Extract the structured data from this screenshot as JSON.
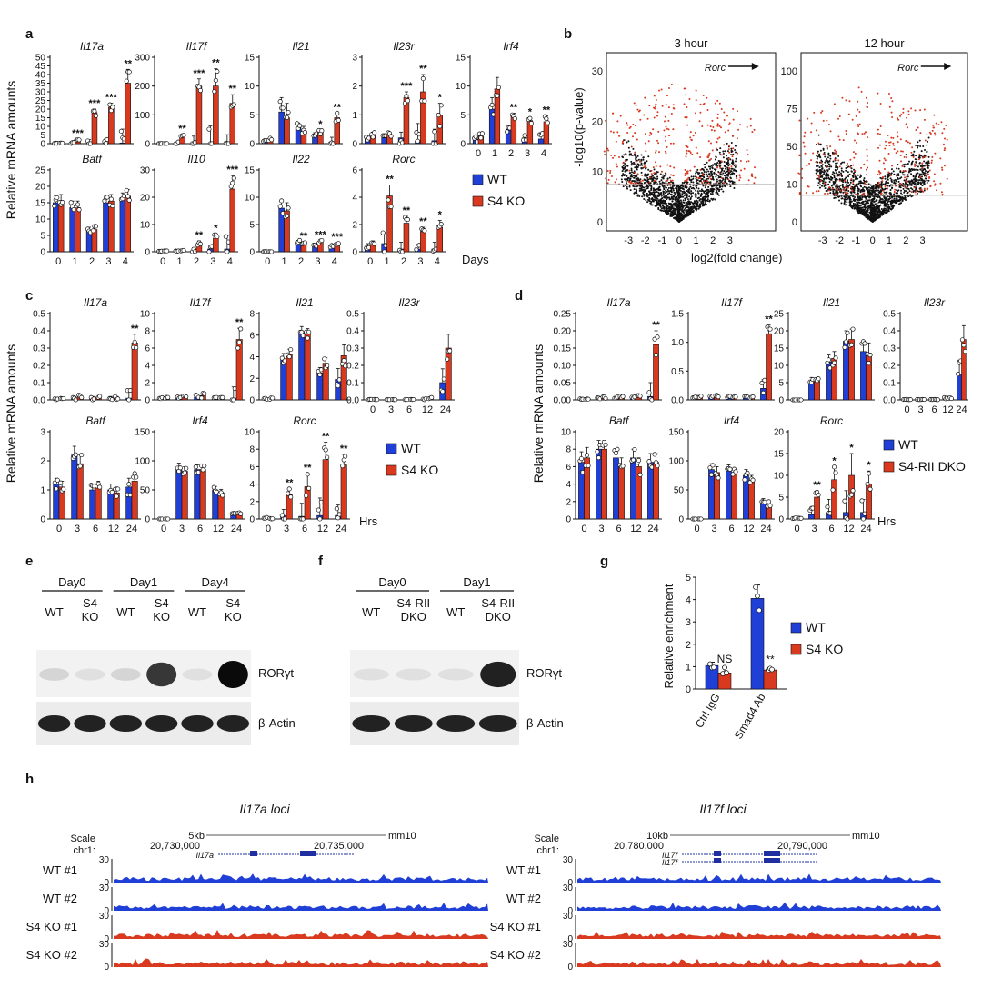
{
  "colors": {
    "wt": "#1f3fd6",
    "ko": "#d8391f",
    "red_dot": "#d8391f",
    "black": "#111111"
  },
  "labels": {
    "ylabel_rel_mrna": "Relative mRNA amounts",
    "ylabel_rel_enrich": "Relative enrichment",
    "days": "Days",
    "hrs": "Hrs",
    "wt": "WT",
    "s4ko": "S4 KO",
    "s4rii": "S4-RII DKO"
  },
  "chart_data": {
    "a": {
      "type": "bar",
      "x_label": "Days",
      "categories": [
        "0",
        "1",
        "2",
        "3",
        "4"
      ],
      "series": [
        "WT",
        "S4 KO"
      ],
      "panels": [
        {
          "gene": "Il17a",
          "ylim": [
            0,
            50
          ],
          "ticks": [
            0,
            5,
            10,
            15,
            20,
            25,
            30,
            35,
            40,
            45,
            50
          ],
          "wt": [
            0.2,
            0.3,
            0.3,
            0.3,
            0.4
          ],
          "ko": [
            0.3,
            2,
            18,
            21,
            35
          ],
          "err": [
            0.1,
            0.6,
            2,
            2.5,
            8
          ],
          "sig": [
            "",
            "***",
            "***",
            "***",
            "**"
          ]
        },
        {
          "gene": "Il17f",
          "ylim": [
            0,
            300
          ],
          "ticks": [
            0,
            100,
            200,
            300
          ],
          "wt": [
            0.3,
            0.5,
            1,
            1,
            1
          ],
          "ko": [
            0.5,
            25,
            200,
            200,
            140
          ],
          "err": [
            0.2,
            6,
            25,
            60,
            30
          ],
          "sig": [
            "",
            "**",
            "***",
            "**",
            "**"
          ]
        },
        {
          "gene": "Il21",
          "ylim": [
            0,
            15
          ],
          "ticks": [
            0,
            5,
            10,
            15
          ],
          "wt": [
            0.5,
            5.5,
            2.8,
            1.5,
            0.3
          ],
          "ko": [
            0.7,
            4.5,
            2.2,
            2,
            4.5
          ],
          "err": [
            0.3,
            2.5,
            0.8,
            0.4,
            0.8
          ],
          "sig": [
            "",
            "",
            "",
            "*",
            "**"
          ]
        },
        {
          "gene": "Il23r",
          "ylim": [
            0,
            3
          ],
          "ticks": [
            0,
            1,
            2,
            3
          ],
          "wt": [
            0.2,
            0.2,
            0.2,
            0.1,
            0.1
          ],
          "ko": [
            0.3,
            0.3,
            1.6,
            1.8,
            1
          ],
          "err": [
            0.1,
            0.1,
            0.2,
            0.6,
            0.4
          ],
          "sig": [
            "",
            "",
            "***",
            "**",
            "*"
          ]
        },
        {
          "gene": "Irf4",
          "ylim": [
            0,
            15
          ],
          "ticks": [
            0,
            5,
            10,
            15
          ],
          "wt": [
            0.8,
            6,
            2.5,
            1,
            0.8
          ],
          "ko": [
            1.3,
            9.5,
            4.8,
            4,
            3.8
          ],
          "err": [
            0.5,
            2,
            0.5,
            0.5,
            1
          ],
          "sig": [
            "",
            "",
            "**",
            "*",
            "**"
          ]
        },
        {
          "gene": "Batf",
          "ylim": [
            0,
            25
          ],
          "ticks": [
            0,
            5,
            10,
            15,
            20,
            25
          ],
          "wt": [
            15,
            13.5,
            6.5,
            15,
            16
          ],
          "ko": [
            15.5,
            13.5,
            6.8,
            15.5,
            17
          ],
          "err": [
            2,
            2,
            1,
            2,
            2
          ],
          "sig": [
            "",
            "",
            "",
            "",
            ""
          ]
        },
        {
          "gene": "Il10",
          "ylim": [
            0,
            30
          ],
          "ticks": [
            0,
            10,
            20,
            30
          ],
          "wt": [
            0.2,
            0.2,
            0.5,
            1,
            1
          ],
          "ko": [
            0.3,
            0.5,
            3,
            5,
            23
          ],
          "err": [
            0.1,
            0.2,
            1,
            1.5,
            5
          ],
          "sig": [
            "",
            "",
            "**",
            "*",
            "***"
          ]
        },
        {
          "gene": "Il22",
          "ylim": [
            0,
            15
          ],
          "ticks": [
            0,
            5,
            10,
            15
          ],
          "wt": [
            0.1,
            8,
            1.8,
            1.3,
            1
          ],
          "ko": [
            0.1,
            7.5,
            1.5,
            1.8,
            1.5
          ],
          "err": [
            0.1,
            1.5,
            0.3,
            0.3,
            0.2
          ],
          "sig": [
            "",
            "",
            "**",
            "***",
            "***"
          ]
        },
        {
          "gene": "Rorc",
          "ylim": [
            0,
            6
          ],
          "ticks": [
            0,
            2,
            4,
            6
          ],
          "wt": [
            0.4,
            0.6,
            0.2,
            0.2,
            0.2
          ],
          "ko": [
            0.6,
            4.1,
            2.1,
            1.5,
            1.8
          ],
          "err": [
            0.2,
            0.8,
            0.5,
            0.3,
            0.5
          ],
          "sig": [
            "",
            "**",
            "**",
            "**",
            "*"
          ]
        }
      ]
    },
    "b": {
      "type": "scatter",
      "xlabel": "log2(fold change)",
      "ylabel": "-log10(p-value)",
      "panels": [
        {
          "title": "3 hour",
          "annotation": "Rorc",
          "xticks": [
            "-3",
            "-2",
            "-1",
            "0",
            "1",
            "2",
            "3"
          ],
          "yticks": [
            "0",
            "10",
            "20",
            "30"
          ]
        },
        {
          "title": "12 hour",
          "annotation": "Rorc",
          "xticks": [
            "-3",
            "-2",
            "-1",
            "0",
            "1",
            "2",
            "3"
          ],
          "yticks": [
            "0",
            "10",
            "50",
            "75",
            "100"
          ]
        }
      ]
    },
    "c": {
      "type": "bar",
      "x_label": "Hrs",
      "categories": [
        "0",
        "3",
        "6",
        "12",
        "24"
      ],
      "panels": [
        {
          "gene": "Il17a",
          "ylim": [
            0,
            0.5
          ],
          "ticks": [
            "0.0",
            "0.1",
            "0.2",
            "0.3",
            "0.4",
            "0.5"
          ],
          "wt": [
            0.005,
            0.01,
            0.01,
            0.01,
            0.01
          ],
          "ko": [
            0.005,
            0.02,
            0.02,
            0.01,
            0.33
          ],
          "err": [
            0.005,
            0.01,
            0.01,
            0.01,
            0.05
          ],
          "sig": [
            "",
            "",
            "",
            "",
            "**"
          ]
        },
        {
          "gene": "Il17f",
          "ylim": [
            0,
            10
          ],
          "ticks": [
            "0",
            "2",
            "4",
            "6",
            "8",
            "10"
          ],
          "wt": [
            0.2,
            0.3,
            0.3,
            0.2,
            0.2
          ],
          "ko": [
            0.2,
            0.4,
            0.5,
            0.2,
            7
          ],
          "err": [
            0.1,
            0.2,
            0.3,
            0.1,
            1.3
          ],
          "sig": [
            "",
            "",
            "",
            "",
            "**"
          ]
        },
        {
          "gene": "Il21",
          "ylim": [
            0,
            8
          ],
          "ticks": [
            "0",
            "2",
            "4",
            "6",
            "8"
          ],
          "wt": [
            0.1,
            3.8,
            6.3,
            2.5,
            1.9
          ],
          "ko": [
            0.1,
            4.2,
            6.1,
            3.4,
            4.1
          ],
          "err": [
            0.1,
            0.5,
            0.5,
            0.5,
            1
          ],
          "sig": [
            "",
            "",
            "",
            "",
            ""
          ]
        },
        {
          "gene": "Il23r",
          "ylim": [
            0,
            0.5
          ],
          "ticks": [
            "0.0",
            "0.1",
            "0.2",
            "0.3",
            "0.4",
            "0.5"
          ],
          "wt": [
            0.002,
            0.002,
            0.002,
            0.005,
            0.1
          ],
          "ko": [
            0.002,
            0.002,
            0.002,
            0.01,
            0.3
          ],
          "err": [
            0.001,
            0.001,
            0.001,
            0.005,
            0.08
          ],
          "sig": [
            "",
            "",
            "",
            "",
            ""
          ]
        },
        {
          "gene": "Batf",
          "ylim": [
            0,
            3
          ],
          "ticks": [
            "0",
            "1",
            "2",
            "3"
          ],
          "wt": [
            1.2,
            2.2,
            1,
            1,
            1.1
          ],
          "ko": [
            1.1,
            1.9,
            1.1,
            0.9,
            1.3
          ],
          "err": [
            0.2,
            0.3,
            0.2,
            0.2,
            0.3
          ],
          "sig": [
            "",
            "",
            "",
            "",
            ""
          ]
        },
        {
          "gene": "Irf4",
          "ylim": [
            0,
            150
          ],
          "ticks": [
            "0",
            "50",
            "100",
            "150"
          ],
          "wt": [
            0,
            88,
            85,
            50,
            8
          ],
          "ko": [
            0,
            82,
            85,
            45,
            10
          ],
          "err": [
            0,
            8,
            8,
            6,
            2
          ],
          "sig": [
            "",
            "",
            "",
            "",
            ""
          ]
        },
        {
          "gene": "Rorc",
          "ylim": [
            0,
            10
          ],
          "ticks": [
            "0",
            "2",
            "4",
            "6",
            "8",
            "10"
          ],
          "wt": [
            0.1,
            0.4,
            0.3,
            0.4,
            0.4
          ],
          "ko": [
            0.1,
            2.8,
            3.7,
            6.8,
            6.2
          ],
          "err": [
            0.1,
            0.7,
            1.5,
            2,
            1.2
          ],
          "sig": [
            "",
            "**",
            "**",
            "**",
            "**"
          ]
        }
      ]
    },
    "d": {
      "type": "bar",
      "x_label": "Hrs",
      "categories": [
        "0",
        "3",
        "6",
        "12",
        "24"
      ],
      "panels": [
        {
          "gene": "Il17a",
          "ylim": [
            0,
            0.25
          ],
          "ticks": [
            "0.00",
            "0.05",
            "0.10",
            "0.15",
            "0.20",
            "0.25"
          ],
          "wt": [
            0.003,
            0.005,
            0.006,
            0.006,
            0.01
          ],
          "ko": [
            0.003,
            0.007,
            0.008,
            0.01,
            0.16
          ],
          "err": [
            0.002,
            0.003,
            0.003,
            0.004,
            0.04
          ],
          "sig": [
            "",
            "",
            "",
            "",
            "**"
          ]
        },
        {
          "gene": "Il17f",
          "ylim": [
            0,
            1.5
          ],
          "ticks": [
            "0.0",
            "0.5",
            "1.0",
            "1.5"
          ],
          "wt": [
            0.05,
            0.06,
            0.05,
            0.05,
            0.2
          ],
          "ko": [
            0.05,
            0.07,
            0.05,
            0.05,
            1.15
          ],
          "err": [
            0.02,
            0.02,
            0.02,
            0.02,
            0.15
          ],
          "sig": [
            "",
            "",
            "",
            "",
            "**"
          ]
        },
        {
          "gene": "Il21",
          "ylim": [
            0,
            25
          ],
          "ticks": [
            "0",
            "5",
            "10",
            "15",
            "20",
            "25"
          ],
          "wt": [
            0,
            5.5,
            11,
            17,
            14
          ],
          "ko": [
            0,
            5.5,
            12,
            17.5,
            13.5
          ],
          "err": [
            0,
            1,
            2,
            3,
            3
          ],
          "sig": [
            "",
            "",
            "",
            "",
            ""
          ]
        },
        {
          "gene": "Il23r",
          "ylim": [
            0,
            0.5
          ],
          "ticks": [
            "0.0",
            "0.1",
            "0.2",
            "0.3",
            "0.4",
            "0.5"
          ],
          "wt": [
            0.002,
            0.002,
            0.002,
            0.01,
            0.15
          ],
          "ko": [
            0.002,
            0.002,
            0.002,
            0.01,
            0.35
          ],
          "err": [
            0.001,
            0.001,
            0.001,
            0.005,
            0.08
          ],
          "sig": [
            "",
            "",
            "",
            "",
            ""
          ]
        },
        {
          "gene": "Batf",
          "ylim": [
            0,
            10
          ],
          "ticks": [
            "0",
            "2",
            "4",
            "6",
            "8",
            "10"
          ],
          "wt": [
            6.5,
            8,
            7,
            7,
            6.5
          ],
          "ko": [
            7,
            8,
            6,
            6,
            6.5
          ],
          "err": [
            1.2,
            1,
            1,
            1,
            1
          ],
          "sig": [
            "",
            "",
            "",
            "",
            ""
          ]
        },
        {
          "gene": "Irf4",
          "ylim": [
            0,
            150
          ],
          "ticks": [
            "0",
            "50",
            "100",
            "150"
          ],
          "wt": [
            0,
            85,
            85,
            75,
            30
          ],
          "ko": [
            0,
            80,
            78,
            65,
            25
          ],
          "err": [
            0,
            10,
            8,
            10,
            5
          ],
          "sig": [
            "",
            "",
            "",
            "",
            ""
          ]
        },
        {
          "gene": "Rorc",
          "ylim": [
            0,
            20
          ],
          "ticks": [
            "0",
            "5",
            "10",
            "15",
            "20"
          ],
          "wt": [
            0.2,
            1,
            1.5,
            1.5,
            1.5
          ],
          "ko": [
            0.2,
            5,
            9,
            10,
            8
          ],
          "err": [
            0.1,
            1.5,
            3,
            5,
            3
          ],
          "sig": [
            "",
            "**",
            "*",
            "*",
            "*"
          ]
        }
      ]
    },
    "e": {
      "type": "blot",
      "groups": [
        "Day0",
        "Day1",
        "Day4"
      ],
      "lanes": [
        "WT",
        "S4\nKO",
        "WT",
        "S4\nKO",
        "WT",
        "S4\nKO"
      ],
      "bands": [
        "RORγt",
        "β-Actin"
      ],
      "ror_intensity": [
        0.1,
        0.05,
        0.1,
        0.8,
        0.05,
        1.0
      ]
    },
    "f": {
      "type": "blot",
      "groups": [
        "Day0",
        "Day1"
      ],
      "lanes": [
        "WT",
        "S4-RII\nDKO",
        "WT",
        "S4-RII\nDKO"
      ],
      "bands": [
        "RORγt",
        "β-Actin"
      ],
      "ror_intensity": [
        0.05,
        0.05,
        0.05,
        0.9
      ]
    },
    "g": {
      "type": "bar",
      "categories": [
        "Ctrl IgG",
        "Smad4 Ab"
      ],
      "ylim": [
        0,
        5
      ],
      "ticks": [
        "0",
        "1",
        "2",
        "3",
        "4",
        "5"
      ],
      "wt": [
        1.05,
        4.05
      ],
      "ko": [
        0.72,
        0.85
      ],
      "err_wt": [
        0.15,
        0.6
      ],
      "err_ko": [
        0.25,
        0.1
      ],
      "sig": [
        "NS",
        "**"
      ]
    },
    "h": {
      "type": "tracks",
      "panels": [
        {
          "title": "Il17a loci",
          "scale": "5kb",
          "assembly": "mm10",
          "coord_left": "20,730,000",
          "coord_right": "20,735,000",
          "genes": [
            "Il17a"
          ]
        },
        {
          "title": "Il17f loci",
          "scale": "10kb",
          "assembly": "mm10",
          "coord_left": "20,780,000",
          "coord_right": "20,790,000",
          "genes": [
            "Il17f",
            "Il17f"
          ]
        }
      ],
      "track_names": [
        "WT #1",
        "WT #2",
        "S4 KO #1",
        "S4 KO #2"
      ],
      "track_ticks": [
        "30",
        "0"
      ],
      "scale_label": "Scale",
      "chr_label": "chr1:"
    }
  },
  "panel_letters": [
    "a",
    "b",
    "c",
    "d",
    "e",
    "f",
    "g",
    "h"
  ]
}
